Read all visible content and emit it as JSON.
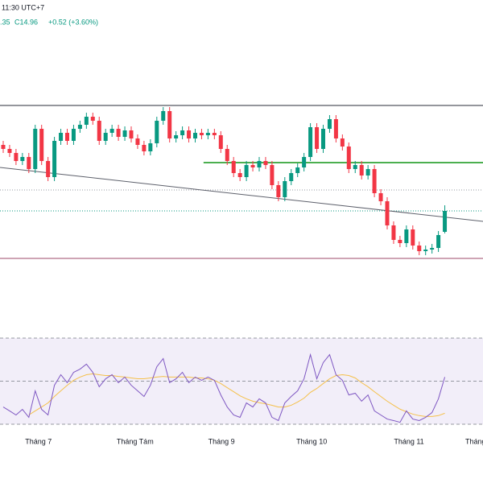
{
  "chart_data": {
    "type": "candlestick",
    "header_time": "11:30 UTC+7",
    "header_low": ".35",
    "header_close": "C14.96",
    "header_change": "+0.52 (+3.60%)",
    "open": [
      16.6,
      16.5,
      16.4,
      16.2,
      16.3,
      16.0,
      17.0,
      16.2,
      15.8,
      16.7,
      16.9,
      16.7,
      17.0,
      17.1,
      17.3,
      17.2,
      16.7,
      16.9,
      17.0,
      16.8,
      16.96,
      16.76,
      16.6,
      16.44,
      16.64,
      17.2,
      17.44,
      16.76,
      16.84,
      16.96,
      16.76,
      16.9,
      16.84,
      16.9,
      16.84,
      16.5,
      16.2,
      15.9,
      15.8,
      16.1,
      16.04,
      16.2,
      16.1,
      15.6,
      15.3,
      15.7,
      15.9,
      16.04,
      16.3,
      17.04,
      16.5,
      17.0,
      17.24,
      16.76,
      16.56,
      16.0,
      16.1,
      15.84,
      16.0,
      15.4,
      15.2,
      14.6,
      14.24,
      14.16,
      14.5,
      14.1,
      13.96,
      14.0,
      14.04,
      14.44
    ],
    "high": [
      16.7,
      16.6,
      16.5,
      16.4,
      16.4,
      17.1,
      17.1,
      16.3,
      16.8,
      17.0,
      17.0,
      17.1,
      17.2,
      17.4,
      17.4,
      17.3,
      17.0,
      17.1,
      17.1,
      17.06,
      17.06,
      16.86,
      16.7,
      16.74,
      17.3,
      17.54,
      17.54,
      16.94,
      17.06,
      17.06,
      17.0,
      17.0,
      17.0,
      17.0,
      16.94,
      16.6,
      16.3,
      16.0,
      16.2,
      16.2,
      16.3,
      16.3,
      16.2,
      15.7,
      15.8,
      16.0,
      16.14,
      16.4,
      17.14,
      17.14,
      17.1,
      17.34,
      17.34,
      16.86,
      16.66,
      16.2,
      16.2,
      16.1,
      16.1,
      15.5,
      15.3,
      14.7,
      14.34,
      14.6,
      14.6,
      14.2,
      14.1,
      14.14,
      14.46,
      15.1
    ],
    "low": [
      16.4,
      16.3,
      16.1,
      16.1,
      15.9,
      15.9,
      16.1,
      15.7,
      15.7,
      16.6,
      16.6,
      16.6,
      16.9,
      17.0,
      17.1,
      16.6,
      16.6,
      16.8,
      16.7,
      16.7,
      16.66,
      16.5,
      16.34,
      16.34,
      16.54,
      17.1,
      16.66,
      16.66,
      16.74,
      16.66,
      16.66,
      16.74,
      16.74,
      16.74,
      16.4,
      16.1,
      15.8,
      15.7,
      15.7,
      15.94,
      15.94,
      16.0,
      15.5,
      15.2,
      15.2,
      15.6,
      15.8,
      15.94,
      16.2,
      16.4,
      16.4,
      16.9,
      16.66,
      16.46,
      15.9,
      15.9,
      15.74,
      15.74,
      15.3,
      15.1,
      14.5,
      14.14,
      14.06,
      14.06,
      14.0,
      13.86,
      13.86,
      13.9,
      13.94,
      14.4
    ],
    "close": [
      16.5,
      16.4,
      16.2,
      16.3,
      16.0,
      17.0,
      16.2,
      15.8,
      16.7,
      16.9,
      16.7,
      17.0,
      17.1,
      17.3,
      17.2,
      16.7,
      16.9,
      17.0,
      16.8,
      16.96,
      16.76,
      16.6,
      16.44,
      16.64,
      17.2,
      17.44,
      16.76,
      16.84,
      16.96,
      16.76,
      16.9,
      16.84,
      16.9,
      16.84,
      16.5,
      16.2,
      15.9,
      15.8,
      16.1,
      16.04,
      16.2,
      16.1,
      15.6,
      15.3,
      15.7,
      15.9,
      16.04,
      16.3,
      17.04,
      16.5,
      17.0,
      17.24,
      16.76,
      16.56,
      16.0,
      16.1,
      15.84,
      16.0,
      15.4,
      15.2,
      14.6,
      14.24,
      14.16,
      14.5,
      14.1,
      13.96,
      14.0,
      14.04,
      14.36,
      14.96
    ],
    "up_color": "#089981",
    "down_color": "#f23645",
    "ylim": [
      12.2,
      20.2
    ],
    "levels": [
      {
        "price": 17.58,
        "color": "#2a2e39",
        "style": "solid"
      },
      {
        "price": 13.78,
        "color": "#9c4a6a",
        "style": "solid"
      },
      {
        "price": 15.48,
        "color": "#9598a1",
        "style": "dotted"
      },
      {
        "price": 14.96,
        "color": "#089981",
        "style": "dotted"
      }
    ],
    "support_line": {
      "price": 16.16,
      "from": 31.3,
      "color": "#4caf50"
    },
    "trend_line": {
      "start": [
        -0.5,
        16.04
      ],
      "end": [
        75,
        14.7
      ],
      "color": "#5d606b"
    },
    "x_labels": [
      {
        "value": 5.5,
        "label": "Tháng 7"
      },
      {
        "value": 20.6,
        "label": "Tháng Tám"
      },
      {
        "value": 34.1,
        "label": "Tháng 9"
      },
      {
        "value": 48.2,
        "label": "Tháng 10"
      },
      {
        "value": 63.4,
        "label": "Tháng 11"
      },
      {
        "value": 73.5,
        "label": "Tháng"
      }
    ],
    "rsi": {
      "color": "#7e57c2",
      "ma_color": "#f5c04a",
      "ylim": [
        30,
        70
      ],
      "levels": [
        30,
        50,
        70
      ],
      "values": [
        38.0,
        36.2,
        34.3,
        36.9,
        33.2,
        45.5,
        36.9,
        34.3,
        48.1,
        53.0,
        49.3,
        54.1,
        55.6,
        57.9,
        54.1,
        47.4,
        51.1,
        53.0,
        49.3,
        51.9,
        48.1,
        45.5,
        42.9,
        48.1,
        56.7,
        60.5,
        49.3,
        51.1,
        54.1,
        49.3,
        51.9,
        50.4,
        51.9,
        50.4,
        43.6,
        38.0,
        34.3,
        33.2,
        39.9,
        38.0,
        41.8,
        39.9,
        33.2,
        31.7,
        39.9,
        42.9,
        45.5,
        51.1,
        62.3,
        51.1,
        58.6,
        62.3,
        53.0,
        50.4,
        43.6,
        44.4,
        40.7,
        43.6,
        36.2,
        34.3,
        32.4,
        31.7,
        30.9,
        36.2,
        32.4,
        31.7,
        33.2,
        35.4,
        41.8,
        51.9
      ],
      "ma": [
        null,
        null,
        null,
        null,
        34.3,
        36.2,
        38.0,
        39.9,
        42.9,
        45.5,
        48.1,
        50.4,
        51.9,
        53.0,
        53.4,
        53.0,
        52.6,
        52.6,
        52.2,
        51.9,
        51.5,
        51.1,
        51.1,
        51.5,
        51.9,
        52.2,
        51.9,
        51.9,
        51.9,
        51.9,
        51.5,
        51.5,
        51.1,
        50.4,
        48.9,
        47.0,
        45.1,
        43.2,
        41.8,
        40.7,
        40.0,
        39.5,
        38.8,
        38.0,
        38.0,
        38.8,
        40.3,
        42.1,
        44.8,
        46.6,
        48.9,
        51.1,
        52.6,
        53.0,
        52.6,
        51.5,
        49.3,
        47.4,
        45.1,
        42.9,
        40.7,
        38.8,
        37.0,
        35.8,
        34.7,
        34.0,
        33.6,
        33.6,
        34.0,
        35.1
      ]
    }
  }
}
